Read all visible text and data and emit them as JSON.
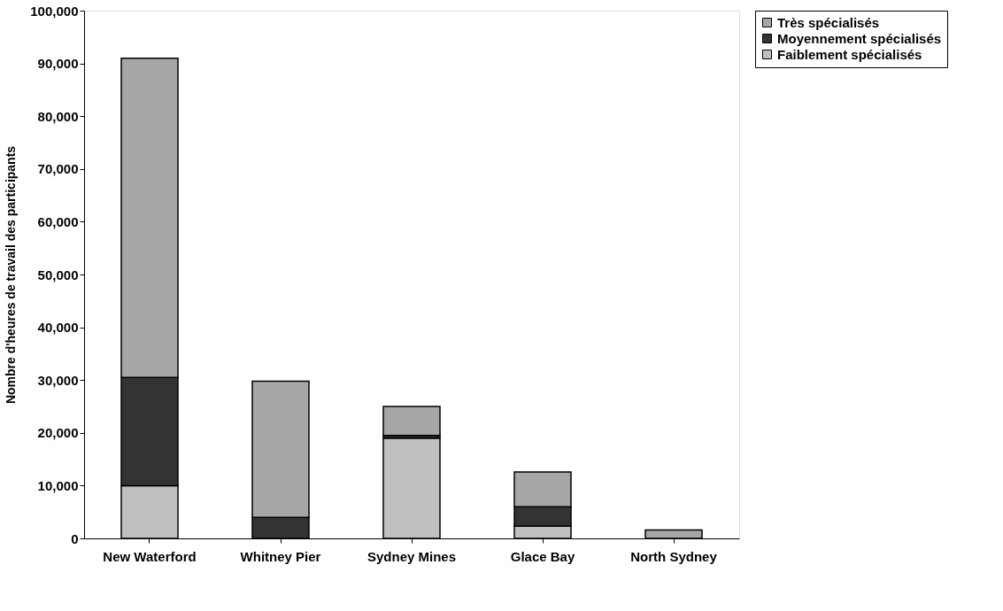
{
  "chart_data": {
    "type": "bar",
    "stacked": true,
    "ylabel": "Nombre d'heures de travail des participants",
    "categories": [
      "New Waterford",
      "Whitney Pier",
      "Sydney Mines",
      "Glace Bay",
      "North Sydney"
    ],
    "series": [
      {
        "name": "Faiblement spécialisés",
        "color": "#c0c0c0",
        "values": [
          10000,
          0,
          19000,
          2300,
          0
        ]
      },
      {
        "name": "Moyennement spécialisés",
        "color": "#333333",
        "values": [
          20500,
          4000,
          500,
          3700,
          0
        ]
      },
      {
        "name": "Très spécialisés",
        "color": "#a6a6a6",
        "values": [
          60500,
          25800,
          5500,
          6600,
          1600
        ]
      }
    ],
    "ylim": [
      0,
      100000
    ],
    "yticks": [
      0,
      {
        "value": 10000,
        "label": "10,000"
      },
      {
        "value": 20000,
        "label": "20,000"
      },
      {
        "value": 30000,
        "label": "30,000"
      },
      {
        "value": 40000,
        "label": "40,000"
      },
      {
        "value": 50000,
        "label": "50,000"
      },
      {
        "value": 60000,
        "label": "60,000"
      },
      {
        "value": 70000,
        "label": "70,000"
      },
      {
        "value": 80000,
        "label": "80,000"
      },
      {
        "value": 90000,
        "label": "90,000"
      },
      {
        "value": 100000,
        "label": "100,000"
      }
    ],
    "grid": false,
    "legend": "top right"
  }
}
